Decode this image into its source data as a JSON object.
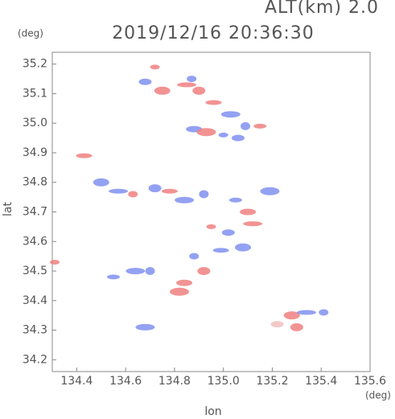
{
  "chart_data": {
    "type": "scatter",
    "title": "2019/12/16 20:36:30",
    "subtitle": "ALT(km) 2.0",
    "x_label": "lon",
    "y_label": "lat",
    "x_unit": "(deg)",
    "y_unit": "(deg)",
    "xlim": [
      134.3,
      135.6
    ],
    "ylim": [
      34.16,
      35.24
    ],
    "xticks": [
      134.4,
      134.6,
      134.8,
      {
        "value": 135.0,
        "label": "135.0"
      },
      135.2,
      135.4,
      135.6
    ],
    "yticks": [
      34.2,
      34.3,
      34.4,
      34.5,
      34.6,
      34.7,
      34.8,
      34.9,
      {
        "value": 35.0,
        "label": "35.0"
      },
      35.1,
      35.2
    ],
    "x": [
      134.72,
      134.68,
      134.75,
      134.85,
      134.87,
      134.9,
      134.96,
      135.03,
      135.09,
      135.15,
      134.88,
      134.93,
      135.0,
      135.06,
      134.5,
      134.57,
      134.63,
      134.72,
      134.78,
      134.84,
      134.92,
      135.05,
      135.1,
      135.19,
      134.95,
      135.02,
      135.08,
      135.12,
      134.88,
      134.92,
      134.99,
      134.64,
      134.7,
      134.55,
      134.84,
      134.82,
      134.31,
      135.22,
      135.28,
      135.34,
      135.41,
      135.3,
      134.43,
      134.68
    ],
    "y": [
      35.19,
      35.14,
      35.11,
      35.13,
      35.15,
      35.11,
      35.07,
      35.03,
      34.99,
      34.99,
      34.98,
      34.97,
      34.96,
      34.95,
      34.8,
      34.77,
      34.76,
      34.78,
      34.77,
      34.74,
      34.76,
      34.74,
      34.7,
      34.77,
      34.65,
      34.63,
      34.58,
      34.66,
      34.55,
      34.5,
      34.57,
      34.5,
      34.5,
      34.48,
      34.46,
      34.43,
      34.53,
      34.32,
      34.35,
      34.36,
      34.36,
      34.31,
      34.89,
      34.31
    ],
    "colors": [
      "#f08080",
      "#8090f0",
      "#f08080",
      "#f08080",
      "#8090f0",
      "#f08080",
      "#f08080",
      "#8090f0",
      "#8090f0",
      "#f08080",
      "#8090f0",
      "#f08080",
      "#8090f0",
      "#8090f0",
      "#8090f0",
      "#8090f0",
      "#f08080",
      "#8090f0",
      "#f08080",
      "#8090f0",
      "#8090f0",
      "#8090f0",
      "#f08080",
      "#8090f0",
      "#f08080",
      "#8090f0",
      "#8090f0",
      "#f08080",
      "#8090f0",
      "#f08080",
      "#8090f0",
      "#8090f0",
      "#8090f0",
      "#8090f0",
      "#f08080",
      "#f08080",
      "#f08080",
      "#f0c0c0",
      "#f08080",
      "#8090f0",
      "#8090f0",
      "#f08080",
      "#f08080",
      "#8090f0"
    ]
  }
}
